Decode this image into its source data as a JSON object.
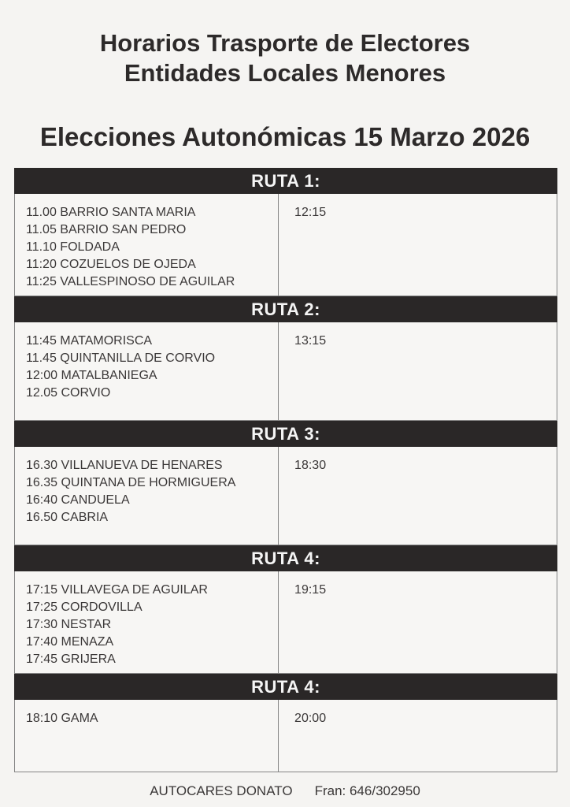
{
  "page": {
    "title_line1": "Horarios Trasporte de Electores",
    "title_line2": "Entidades Locales Menores",
    "subtitle": "Elecciones Autonómicas 15 Marzo 2026"
  },
  "routes": [
    {
      "header": "RUTA 1:",
      "stops": [
        "11.00 BARRIO SANTA MARIA",
        "11.05 BARRIO SAN PEDRO",
        "11.10 FOLDADA",
        "11:20 COZUELOS DE OJEDA",
        "11:25 VALLESPINOSO DE AGUILAR"
      ],
      "return_time": "12:15"
    },
    {
      "header": "RUTA 2:",
      "stops": [
        "11:45 MATAMORISCA",
        "11.45 QUINTANILLA DE CORVIO",
        "12:00 MATALBANIEGA",
        "12.05 CORVIO"
      ],
      "return_time": "13:15"
    },
    {
      "header": "RUTA 3:",
      "stops": [
        "16.30 VILLANUEVA DE HENARES",
        "16.35 QUINTANA DE HORMIGUERA",
        "16:40 CANDUELA",
        "16.50 CABRIA"
      ],
      "return_time": "18:30"
    },
    {
      "header": "RUTA 4:",
      "stops": [
        "17:15 VILLAVEGA DE AGUILAR",
        "17:25 CORDOVILLA",
        "17:30 NESTAR",
        "17:40 MENAZA",
        "17:45 GRIJERA"
      ],
      "return_time": "19:15"
    },
    {
      "header": "RUTA 4:",
      "stops": [
        "18:10 GAMA"
      ],
      "return_time": "20:00"
    }
  ],
  "footer": {
    "company": "AUTOCARES DONATO",
    "contact": "Fran: 646/302950"
  },
  "colors": {
    "page_bg": "#f5f4f2",
    "cell_bg": "#f7f6f4",
    "header_bg": "#2a2727",
    "header_text": "#f5f5f5",
    "border": "#848484",
    "text": "#3b3838"
  }
}
